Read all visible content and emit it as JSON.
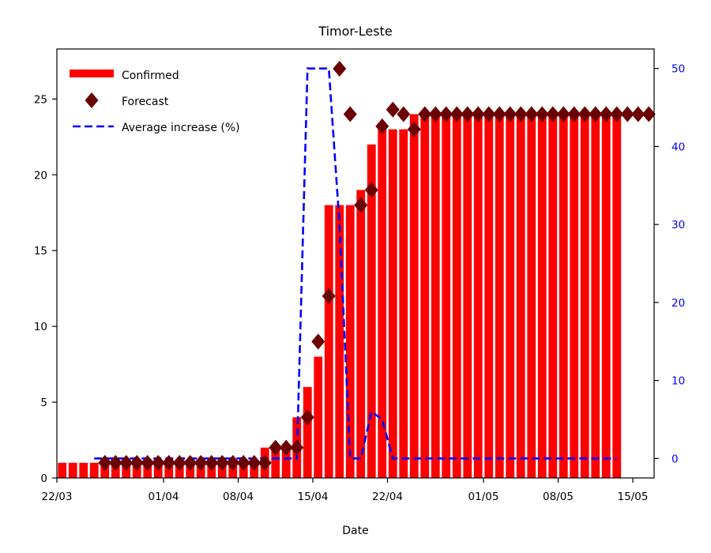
{
  "chart_data": {
    "type": "bar",
    "title": "Timor-Leste",
    "xlabel": "Date",
    "ylabel": "",
    "ylabel_right": "",
    "ylim": [
      0,
      28.3
    ],
    "ylim_right": [
      -2.5,
      52.5
    ],
    "x_ticks": [
      "22/03",
      "01/04",
      "08/04",
      "15/04",
      "22/04",
      "01/05",
      "08/05",
      "15/05"
    ],
    "x_tick_days": [
      0,
      10,
      17,
      24,
      31,
      40,
      47,
      54
    ],
    "y_ticks": [
      0,
      5,
      10,
      15,
      20,
      25
    ],
    "y_ticks_right": [
      0,
      10,
      20,
      30,
      40,
      50
    ],
    "x_start": "22/03",
    "xlim_days": [
      0,
      56
    ],
    "legend_position": "top-left",
    "grid": false,
    "colors": {
      "confirmed": "#ff0000",
      "forecast": "#6b0000",
      "average": "#0000ff",
      "right_axis": "#0000ff"
    },
    "series": [
      {
        "name": "Confirmed",
        "kind": "bar",
        "axis": "left",
        "x_days": [
          0,
          1,
          2,
          3,
          4,
          5,
          6,
          7,
          8,
          9,
          10,
          11,
          12,
          13,
          14,
          15,
          16,
          17,
          18,
          19,
          20,
          21,
          22,
          23,
          24,
          25,
          26,
          27,
          28,
          29,
          30,
          31,
          32,
          33,
          34,
          35,
          36,
          37,
          38,
          39,
          40,
          41,
          42,
          43,
          44,
          45,
          46,
          47,
          48,
          49,
          50,
          51,
          52
        ],
        "values": [
          1,
          1,
          1,
          1,
          1,
          1,
          1,
          1,
          1,
          1,
          1,
          1,
          1,
          1,
          1,
          1,
          1,
          1,
          1,
          2,
          2,
          2,
          4,
          6,
          8,
          18,
          18,
          18,
          19,
          22,
          23,
          23,
          23,
          24,
          24,
          24,
          24,
          24,
          24,
          24,
          24,
          24,
          24,
          24,
          24,
          24,
          24,
          24,
          24,
          24,
          24,
          24,
          24
        ]
      },
      {
        "name": "Forecast",
        "kind": "scatter",
        "axis": "left",
        "x_days": [
          4,
          5,
          6,
          7,
          8,
          9,
          10,
          11,
          12,
          13,
          14,
          15,
          16,
          17,
          18,
          19,
          20,
          21,
          22,
          23,
          24,
          25,
          26,
          27,
          28,
          29,
          30,
          31,
          32,
          33,
          34,
          35,
          36,
          37,
          38,
          39,
          40,
          41,
          42,
          43,
          44,
          45,
          46,
          47,
          48,
          49,
          50,
          51,
          52,
          53,
          54,
          55
        ],
        "values": [
          1,
          1,
          1,
          1,
          1,
          1,
          1,
          1,
          1,
          1,
          1,
          1,
          1,
          1,
          1,
          1,
          2,
          2,
          2,
          4,
          9,
          12,
          27,
          24,
          18,
          19,
          23.2,
          24.3,
          24,
          23,
          24,
          24,
          24,
          24,
          24,
          24,
          24,
          24,
          24,
          24,
          24,
          24,
          24,
          24,
          24,
          24,
          24,
          24,
          24,
          24,
          24,
          24
        ]
      },
      {
        "name": "Average increase (%)",
        "kind": "line",
        "axis": "right",
        "x_days": [
          3,
          4,
          5,
          6,
          7,
          8,
          9,
          10,
          11,
          12,
          13,
          14,
          15,
          16,
          17,
          18,
          19,
          20,
          21,
          22,
          23,
          24,
          25,
          26,
          27,
          28,
          29,
          30,
          31,
          32,
          33,
          34,
          35,
          36,
          37,
          38,
          39,
          40,
          41,
          42,
          43,
          44,
          45,
          46,
          47,
          48,
          49,
          50,
          51,
          52
        ],
        "values": [
          0,
          0,
          0,
          0,
          0,
          0,
          0,
          0,
          0,
          0,
          0,
          0,
          0,
          0,
          0,
          0,
          0,
          0,
          0,
          0,
          50,
          50,
          50,
          30,
          0,
          0,
          6,
          5,
          0,
          0,
          0,
          0,
          0,
          0,
          0,
          0,
          0,
          0,
          0,
          0,
          0,
          0,
          0,
          0,
          0,
          0,
          0,
          0,
          0,
          0
        ]
      }
    ]
  }
}
